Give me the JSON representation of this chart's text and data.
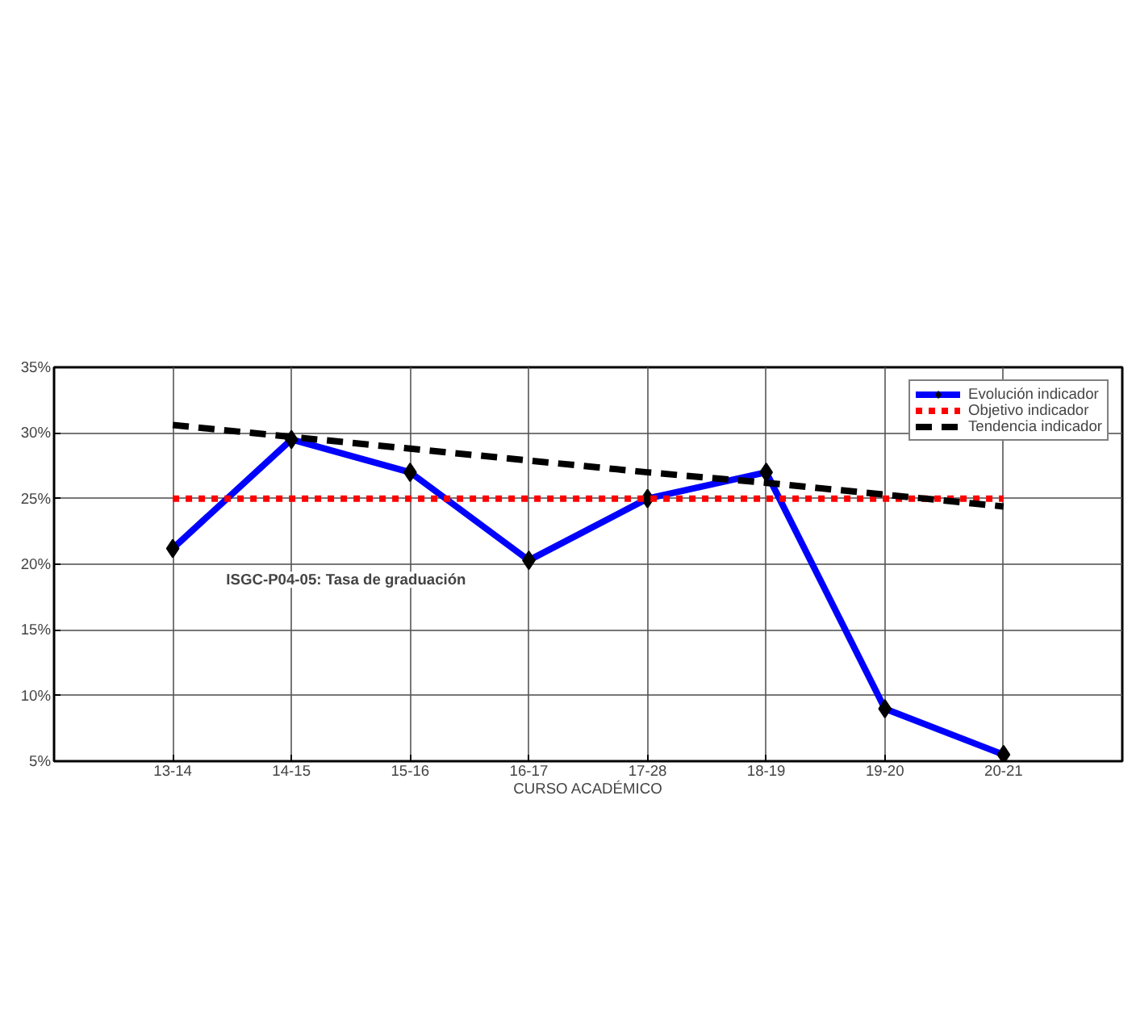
{
  "chart_data": {
    "type": "line",
    "xlabel": "CURSO ACADÉMICO",
    "categories": [
      "13-14",
      "14-15",
      "15-16",
      "16-17",
      "17-28",
      "18-19",
      "19-20",
      "20-21"
    ],
    "series": [
      {
        "name": "Evolución indicador",
        "color": "#0000ff",
        "marker": "diamond",
        "line_style": "solid",
        "values": [
          21.2,
          29.5,
          27.0,
          20.3,
          25.0,
          27.0,
          9.0,
          5.5
        ]
      },
      {
        "name": "Objetivo indicador",
        "color": "#ff0000",
        "marker": "none",
        "line_style": "dotted",
        "values": [
          25,
          25,
          25,
          25,
          25,
          25,
          25,
          25
        ]
      },
      {
        "name": "Tendencia indicador",
        "color": "#000000",
        "marker": "none",
        "line_style": "dashed",
        "values": [
          30.6,
          29.7,
          28.8,
          27.9,
          27.0,
          26.2,
          25.3,
          24.4
        ]
      }
    ],
    "ylim": [
      5,
      35
    ],
    "yticks": [
      {
        "value": 5,
        "label": "5%"
      },
      {
        "value": 10,
        "label": "10%"
      },
      {
        "value": 15,
        "label": "15%"
      },
      {
        "value": 20,
        "label": "20%"
      },
      {
        "value": 25,
        "label": "25%"
      },
      {
        "value": 30,
        "label": "30%"
      },
      {
        "value": 35,
        "label": "35%"
      }
    ],
    "annotations": [
      "ISGC-P04-05: Tasa de graduación"
    ],
    "grid": true,
    "legend": "top right"
  }
}
